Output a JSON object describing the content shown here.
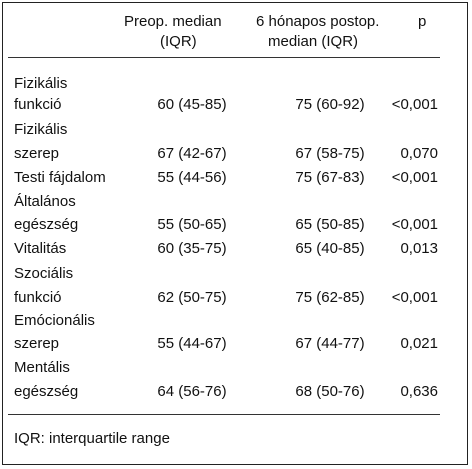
{
  "header": {
    "col_preop_line1": "Preop. median",
    "col_preop_line2": "(IQR)",
    "col_postop_line1": "6 hónapos postop.",
    "col_postop_line2": "median (IQR)",
    "col_p": "p"
  },
  "rows": [
    {
      "label_line1": "Fizikális",
      "label_line2": "funkció",
      "preop": "60 (45-85)",
      "postop": "75 (60-92)",
      "p": "<0,001"
    },
    {
      "label_line1": "Fizikális",
      "label_line2": "szerep",
      "preop": "67 (42-67)",
      "postop": "67 (58-75)",
      "p": "0,070"
    },
    {
      "label_line1": "Testi fájdalom",
      "label_line2": "",
      "preop": "55 (44-56)",
      "postop": "75 (67-83)",
      "p": "<0,001"
    },
    {
      "label_line1": "Általános",
      "label_line2": "egészség",
      "preop": "55 (50-65)",
      "postop": "65 (50-85)",
      "p": "<0,001"
    },
    {
      "label_line1": "Vitalitás",
      "label_line2": "",
      "preop": "60 (35-75)",
      "postop": "65 (40-85)",
      "p": "0,013"
    },
    {
      "label_line1": "Szociális",
      "label_line2": "funkció",
      "preop": "62 (50-75)",
      "postop": "75 (62-85)",
      "p": "<0,001"
    },
    {
      "label_line1": "Emócionális",
      "label_line2": "szerep",
      "preop": "55 (44-67)",
      "postop": "67 (44-77)",
      "p": "0,021"
    },
    {
      "label_line1": "Mentális",
      "label_line2": "egészség",
      "preop": "64 (56-76)",
      "postop": "68 (50-76)",
      "p": "0,636"
    }
  ],
  "footnote": "IQR: interquartile range"
}
